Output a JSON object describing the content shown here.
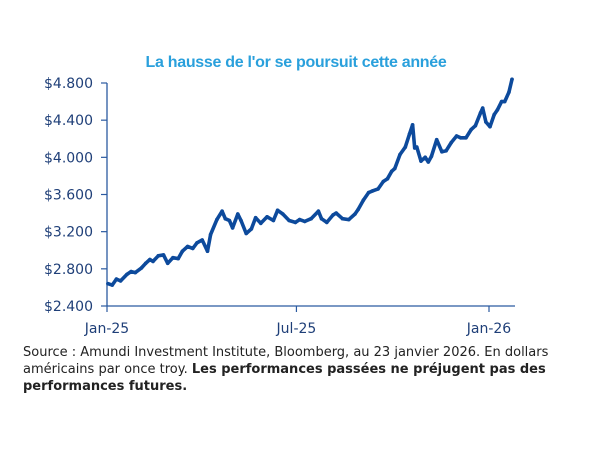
{
  "chart_data": {
    "type": "line",
    "title": "La hausse de l'or se poursuit cette année",
    "xlabel": "",
    "ylabel": "",
    "x_ticks": [
      "Jan-25",
      "Jul-25",
      "Jan-26"
    ],
    "y_ticks": [
      "$2.400",
      "$2.800",
      "$3.200",
      "$3.600",
      "$4.000",
      "$4.400",
      "$4.800"
    ],
    "ylim": [
      2400,
      4800
    ],
    "xlim": [
      "2025-01-01",
      "2026-01-23"
    ],
    "grid": false,
    "legend": "none",
    "series": [
      {
        "color": "#0d4a9c",
        "points": [
          [
            "2025-01-02",
            2640
          ],
          [
            "2025-01-06",
            2625
          ],
          [
            "2025-01-10",
            2690
          ],
          [
            "2025-01-14",
            2670
          ],
          [
            "2025-01-20",
            2740
          ],
          [
            "2025-01-24",
            2770
          ],
          [
            "2025-01-28",
            2760
          ],
          [
            "2025-02-03",
            2810
          ],
          [
            "2025-02-07",
            2860
          ],
          [
            "2025-02-11",
            2900
          ],
          [
            "2025-02-14",
            2880
          ],
          [
            "2025-02-19",
            2940
          ],
          [
            "2025-02-24",
            2950
          ],
          [
            "2025-02-28",
            2860
          ],
          [
            "2025-03-05",
            2920
          ],
          [
            "2025-03-10",
            2910
          ],
          [
            "2025-03-14",
            2990
          ],
          [
            "2025-03-19",
            3040
          ],
          [
            "2025-03-24",
            3020
          ],
          [
            "2025-03-28",
            3080
          ],
          [
            "2025-04-02",
            3110
          ],
          [
            "2025-04-07",
            2990
          ],
          [
            "2025-04-10",
            3170
          ],
          [
            "2025-04-16",
            3330
          ],
          [
            "2025-04-21",
            3420
          ],
          [
            "2025-04-24",
            3340
          ],
          [
            "2025-04-28",
            3320
          ],
          [
            "2025-05-01",
            3240
          ],
          [
            "2025-05-06",
            3390
          ],
          [
            "2025-05-09",
            3320
          ],
          [
            "2025-05-14",
            3180
          ],
          [
            "2025-05-19",
            3230
          ],
          [
            "2025-05-23",
            3350
          ],
          [
            "2025-05-28",
            3290
          ],
          [
            "2025-06-03",
            3360
          ],
          [
            "2025-06-09",
            3320
          ],
          [
            "2025-06-13",
            3430
          ],
          [
            "2025-06-18",
            3390
          ],
          [
            "2025-06-24",
            3320
          ],
          [
            "2025-06-30",
            3300
          ],
          [
            "2025-07-04",
            3330
          ],
          [
            "2025-07-09",
            3310
          ],
          [
            "2025-07-15",
            3340
          ],
          [
            "2025-07-22",
            3420
          ],
          [
            "2025-07-25",
            3340
          ],
          [
            "2025-07-30",
            3300
          ],
          [
            "2025-08-05",
            3380
          ],
          [
            "2025-08-08",
            3400
          ],
          [
            "2025-08-14",
            3340
          ],
          [
            "2025-08-20",
            3330
          ],
          [
            "2025-08-26",
            3390
          ],
          [
            "2025-08-29",
            3440
          ],
          [
            "2025-09-03",
            3540
          ],
          [
            "2025-09-08",
            3620
          ],
          [
            "2025-09-12",
            3640
          ],
          [
            "2025-09-17",
            3660
          ],
          [
            "2025-09-22",
            3740
          ],
          [
            "2025-09-26",
            3770
          ],
          [
            "2025-09-30",
            3850
          ],
          [
            "2025-10-03",
            3880
          ],
          [
            "2025-10-08",
            4030
          ],
          [
            "2025-10-13",
            4110
          ],
          [
            "2025-10-17",
            4250
          ],
          [
            "2025-10-20",
            4350
          ],
          [
            "2025-10-22",
            4100
          ],
          [
            "2025-10-24",
            4110
          ],
          [
            "2025-10-28",
            3960
          ],
          [
            "2025-11-01",
            4000
          ],
          [
            "2025-11-04",
            3950
          ],
          [
            "2025-11-07",
            4010
          ],
          [
            "2025-11-12",
            4190
          ],
          [
            "2025-11-17",
            4060
          ],
          [
            "2025-11-21",
            4070
          ],
          [
            "2025-11-26",
            4160
          ],
          [
            "2025-12-01",
            4230
          ],
          [
            "2025-12-05",
            4210
          ],
          [
            "2025-12-10",
            4210
          ],
          [
            "2025-12-15",
            4300
          ],
          [
            "2025-12-19",
            4340
          ],
          [
            "2025-12-24",
            4480
          ],
          [
            "2025-12-26",
            4530
          ],
          [
            "2025-12-29",
            4380
          ],
          [
            "2026-01-02",
            4330
          ],
          [
            "2026-01-06",
            4460
          ],
          [
            "2026-01-09",
            4510
          ],
          [
            "2026-01-13",
            4600
          ],
          [
            "2026-01-16",
            4600
          ],
          [
            "2026-01-20",
            4700
          ],
          [
            "2026-01-23",
            4840
          ]
        ]
      }
    ],
    "source_text": "Source : Amundi Investment Institute, Bloomberg, au 23 janvier 2026. En dollars américains par once troy.",
    "disclaimer_text": "Les performances passées ne préjugent pas des performances futures."
  }
}
